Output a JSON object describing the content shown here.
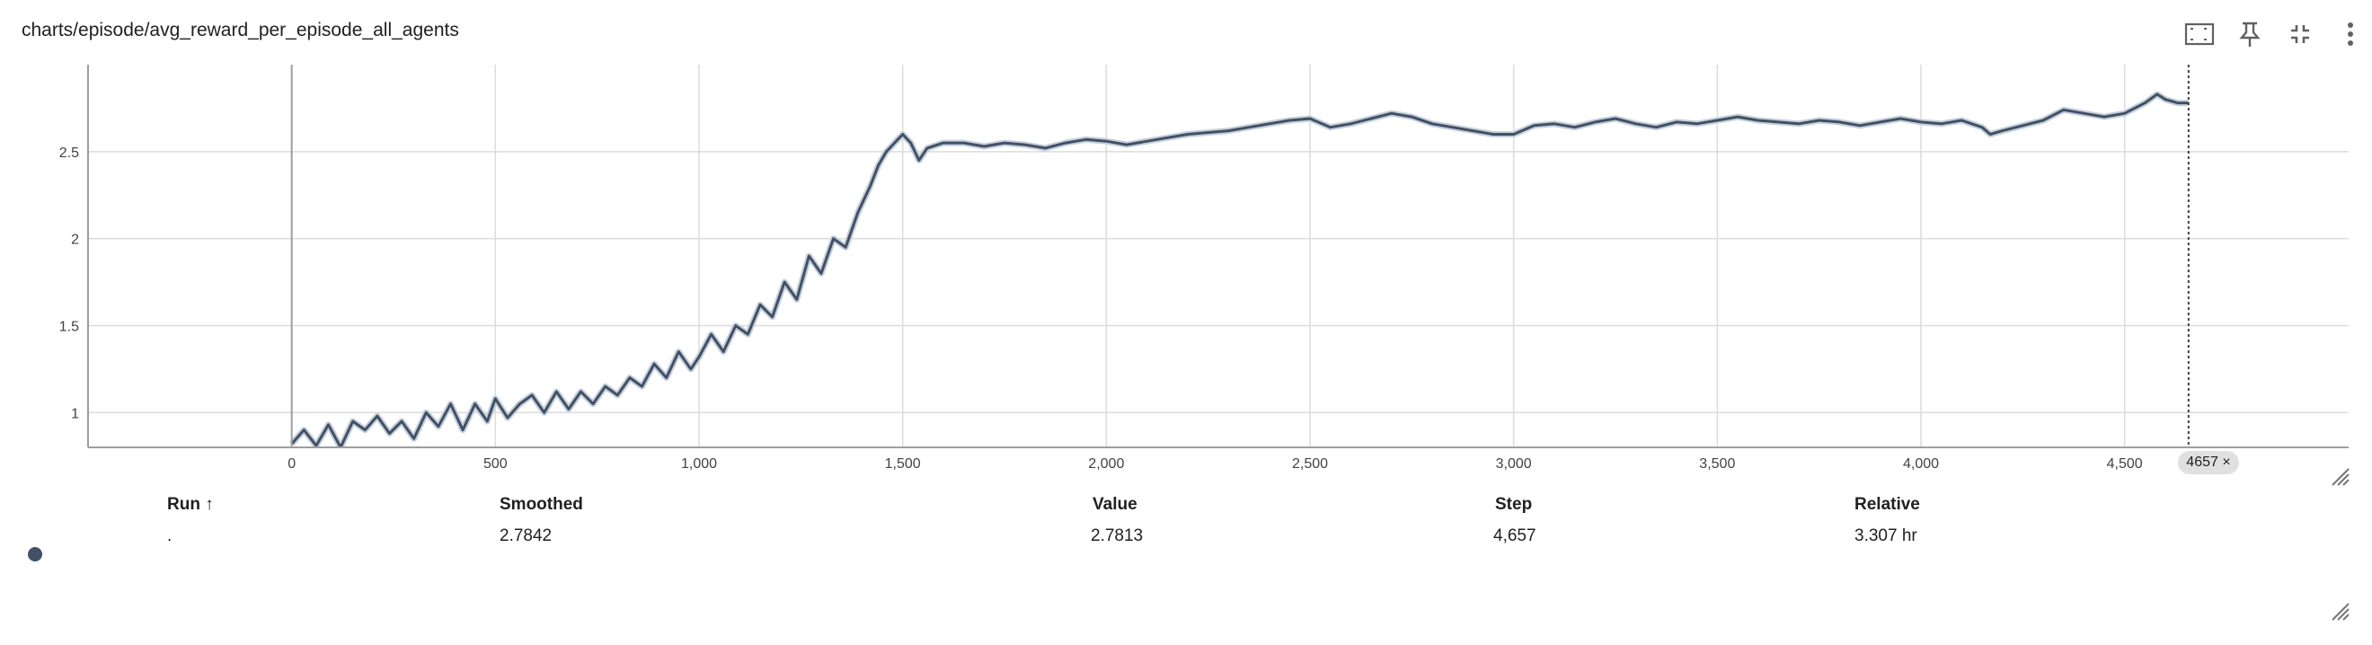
{
  "header": {
    "title": "charts/episode/avg_reward_per_episode_all_agents",
    "icons": [
      "fit-domain-icon",
      "pin-icon",
      "collapse-icon",
      "more-vert-icon"
    ]
  },
  "chart_data": {
    "type": "line",
    "title": "charts/episode/avg_reward_per_episode_all_agents",
    "xlabel": "",
    "ylabel": "",
    "xlim": [
      -500,
      5050
    ],
    "ylim": [
      0.8,
      3.0
    ],
    "x_ticks": [
      0,
      500,
      1000,
      1500,
      2000,
      2500,
      3000,
      3500,
      4000,
      4500
    ],
    "x_tick_labels": [
      "0",
      "500",
      "1,000",
      "1,500",
      "2,000",
      "2,500",
      "3,000",
      "3,500",
      "4,000",
      "4,500"
    ],
    "y_ticks": [
      1,
      1.5,
      2,
      2.5
    ],
    "y_tick_labels": [
      "1",
      "1.5",
      "2",
      "2.5"
    ],
    "grid": true,
    "legend": "none",
    "series": [
      {
        "name": ".",
        "color": "#425066",
        "raw_color": "#c5cfdb",
        "points": [
          [
            0,
            0.82
          ],
          [
            30,
            0.9
          ],
          [
            60,
            0.81
          ],
          [
            90,
            0.93
          ],
          [
            120,
            0.8
          ],
          [
            150,
            0.95
          ],
          [
            180,
            0.9
          ],
          [
            210,
            0.98
          ],
          [
            240,
            0.88
          ],
          [
            270,
            0.95
          ],
          [
            300,
            0.85
          ],
          [
            330,
            1.0
          ],
          [
            360,
            0.92
          ],
          [
            390,
            1.05
          ],
          [
            420,
            0.9
          ],
          [
            450,
            1.05
          ],
          [
            480,
            0.95
          ],
          [
            500,
            1.08
          ],
          [
            530,
            0.97
          ],
          [
            560,
            1.05
          ],
          [
            590,
            1.1
          ],
          [
            620,
            1.0
          ],
          [
            650,
            1.12
          ],
          [
            680,
            1.02
          ],
          [
            710,
            1.12
          ],
          [
            740,
            1.05
          ],
          [
            770,
            1.15
          ],
          [
            800,
            1.1
          ],
          [
            830,
            1.2
          ],
          [
            860,
            1.15
          ],
          [
            890,
            1.28
          ],
          [
            920,
            1.2
          ],
          [
            950,
            1.35
          ],
          [
            980,
            1.25
          ],
          [
            1000,
            1.32
          ],
          [
            1030,
            1.45
          ],
          [
            1060,
            1.35
          ],
          [
            1090,
            1.5
          ],
          [
            1120,
            1.45
          ],
          [
            1150,
            1.62
          ],
          [
            1180,
            1.55
          ],
          [
            1210,
            1.75
          ],
          [
            1240,
            1.65
          ],
          [
            1270,
            1.9
          ],
          [
            1300,
            1.8
          ],
          [
            1330,
            2.0
          ],
          [
            1360,
            1.95
          ],
          [
            1390,
            2.15
          ],
          [
            1420,
            2.3
          ],
          [
            1440,
            2.42
          ],
          [
            1460,
            2.5
          ],
          [
            1480,
            2.55
          ],
          [
            1500,
            2.6
          ],
          [
            1520,
            2.55
          ],
          [
            1540,
            2.45
          ],
          [
            1560,
            2.52
          ],
          [
            1600,
            2.55
          ],
          [
            1650,
            2.55
          ],
          [
            1700,
            2.53
          ],
          [
            1750,
            2.55
          ],
          [
            1800,
            2.54
          ],
          [
            1850,
            2.52
          ],
          [
            1900,
            2.55
          ],
          [
            1950,
            2.57
          ],
          [
            2000,
            2.56
          ],
          [
            2050,
            2.54
          ],
          [
            2100,
            2.56
          ],
          [
            2150,
            2.58
          ],
          [
            2200,
            2.6
          ],
          [
            2250,
            2.61
          ],
          [
            2300,
            2.62
          ],
          [
            2350,
            2.64
          ],
          [
            2400,
            2.66
          ],
          [
            2450,
            2.68
          ],
          [
            2500,
            2.69
          ],
          [
            2550,
            2.64
          ],
          [
            2600,
            2.66
          ],
          [
            2650,
            2.69
          ],
          [
            2700,
            2.72
          ],
          [
            2750,
            2.7
          ],
          [
            2800,
            2.66
          ],
          [
            2850,
            2.64
          ],
          [
            2900,
            2.62
          ],
          [
            2950,
            2.6
          ],
          [
            3000,
            2.6
          ],
          [
            3050,
            2.65
          ],
          [
            3100,
            2.66
          ],
          [
            3150,
            2.64
          ],
          [
            3200,
            2.67
          ],
          [
            3250,
            2.69
          ],
          [
            3300,
            2.66
          ],
          [
            3350,
            2.64
          ],
          [
            3400,
            2.67
          ],
          [
            3450,
            2.66
          ],
          [
            3500,
            2.68
          ],
          [
            3550,
            2.7
          ],
          [
            3600,
            2.68
          ],
          [
            3650,
            2.67
          ],
          [
            3700,
            2.66
          ],
          [
            3750,
            2.68
          ],
          [
            3800,
            2.67
          ],
          [
            3850,
            2.65
          ],
          [
            3900,
            2.67
          ],
          [
            3950,
            2.69
          ],
          [
            4000,
            2.67
          ],
          [
            4050,
            2.66
          ],
          [
            4100,
            2.68
          ],
          [
            4150,
            2.64
          ],
          [
            4170,
            2.6
          ],
          [
            4200,
            2.62
          ],
          [
            4250,
            2.65
          ],
          [
            4300,
            2.68
          ],
          [
            4350,
            2.74
          ],
          [
            4400,
            2.72
          ],
          [
            4450,
            2.7
          ],
          [
            4500,
            2.72
          ],
          [
            4550,
            2.78
          ],
          [
            4580,
            2.83
          ],
          [
            4600,
            2.8
          ],
          [
            4630,
            2.78
          ],
          [
            4657,
            2.78
          ]
        ]
      }
    ],
    "hover_step": 4657,
    "hover_step_label": "4657 ×"
  },
  "table": {
    "headers": {
      "run": "Run ↑",
      "smoothed": "Smoothed",
      "value": "Value",
      "step": "Step",
      "relative": "Relative"
    },
    "row": {
      "run": ".",
      "run_color": "#425066",
      "smoothed": "2.7842",
      "value": "2.7813",
      "step": "4,657",
      "relative": "3.307 hr"
    }
  }
}
